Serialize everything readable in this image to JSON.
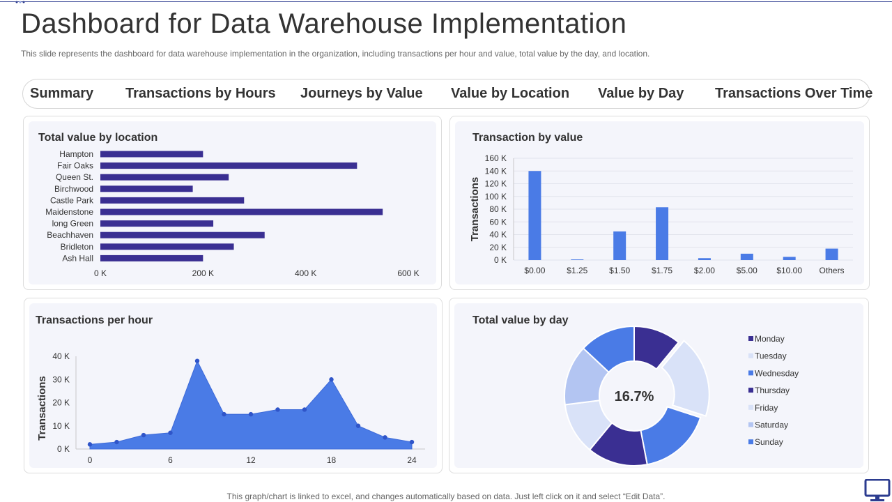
{
  "header": {
    "title": "Dashboard for Data Warehouse Implementation",
    "subtitle": "This slide represents the dashboard for data warehouse implementation in the organization, including transactions per hour and value, total value by the day,  and location."
  },
  "tabs": [
    {
      "label": "Summary"
    },
    {
      "label": "Transactions by Hours"
    },
    {
      "label": "Journeys by Value"
    },
    {
      "label": "Value by Location"
    },
    {
      "label": "Value by Day"
    },
    {
      "label": "Transactions Over Time"
    }
  ],
  "panels": {
    "location": {
      "title": "Total value by location"
    },
    "value": {
      "title": "Transaction by value"
    },
    "hour": {
      "title": "Transactions per hour"
    },
    "day": {
      "title": "Total value by day"
    }
  },
  "footer": {
    "note": "This graph/chart is linked to excel,  and changes automatically based on data. Just left click on it and select “Edit Data”."
  },
  "icons": {
    "monitor": "monitor-icon"
  },
  "colors": {
    "bar_dark": "#3a2f92",
    "bar_blue": "#4a7be6",
    "area_fill": "#4a7be6",
    "axis_text": "#333333",
    "panel_bg": "#f4f5fb"
  },
  "chart_data": [
    {
      "type": "bar",
      "orientation": "horizontal",
      "title": "Total value by location",
      "categories": [
        "Hampton",
        "Fair Oaks",
        "Queen St.",
        "Birchwood",
        "Castle Park",
        "Maidenstone",
        "long Green",
        "Beachhaven",
        "Bridleton",
        "Ash Hall"
      ],
      "values": [
        200000,
        500000,
        250000,
        180000,
        280000,
        550000,
        220000,
        320000,
        260000,
        200000
      ],
      "xlim": [
        0,
        600000
      ],
      "xticks": [
        0,
        200000,
        400000,
        600000
      ],
      "xtick_labels": [
        "0 K",
        "200 K",
        "400 K",
        "600 K"
      ],
      "grid": false,
      "color": "#3a2f92"
    },
    {
      "type": "bar",
      "title": "Transaction by value",
      "categories": [
        "$0.00",
        "$1.25",
        "$1.50",
        "$1.75",
        "$2.00",
        "$5.00",
        "$10.00",
        "Others"
      ],
      "values": [
        140000,
        1000,
        45000,
        83000,
        3000,
        10000,
        5000,
        18000
      ],
      "ylabel": "Transactions",
      "ylim": [
        0,
        160000
      ],
      "yticks": [
        0,
        20000,
        40000,
        60000,
        80000,
        100000,
        120000,
        140000,
        160000
      ],
      "ytick_labels": [
        "0 K",
        "20 K",
        "40 K",
        "60 K",
        "80 K",
        "100 K",
        "120 K",
        "140 K",
        "160 K"
      ],
      "grid": true,
      "color": "#4a7be6"
    },
    {
      "type": "area",
      "title": "Transactions per hour",
      "x": [
        0,
        2,
        4,
        6,
        8,
        10,
        12,
        14,
        16,
        18,
        20,
        22,
        24
      ],
      "values": [
        2000,
        3000,
        6000,
        7000,
        38000,
        15000,
        15000,
        17000,
        17000,
        30000,
        10000,
        5000,
        3000
      ],
      "ylabel": "Transactions",
      "ylim": [
        0,
        40000
      ],
      "yticks": [
        0,
        10000,
        20000,
        30000,
        40000
      ],
      "ytick_labels": [
        "0 K",
        "10 K",
        "20 K",
        "30 K",
        "40 K"
      ],
      "xticks": [
        0,
        6,
        12,
        18,
        24
      ],
      "xlim": [
        0,
        24
      ],
      "grid": false,
      "color": "#4a7be6"
    },
    {
      "type": "pie",
      "title": "Total value by day",
      "donut": true,
      "center_label": "16.7%",
      "categories": [
        "Monday",
        "Tuesday",
        "Wednesday",
        "Thursday",
        "Friday",
        "Saturday",
        "Sunday"
      ],
      "values": [
        11,
        19,
        17,
        14,
        12,
        14,
        13
      ],
      "colors": [
        "#3a2f92",
        "#d9e2f8",
        "#4a7be6",
        "#3a2f92",
        "#d9e2f8",
        "#b3c5f2",
        "#4a7be6"
      ],
      "legend": "right"
    }
  ]
}
